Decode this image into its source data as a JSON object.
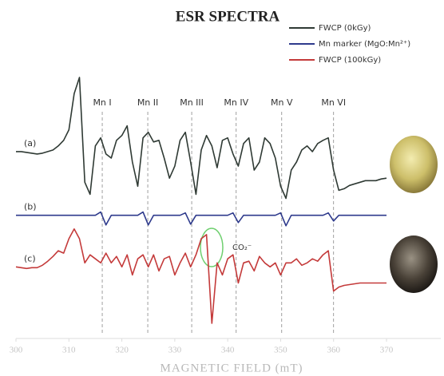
{
  "chart_data": {
    "type": "line",
    "title": "ESR SPECTRA",
    "x_label": "MAGNETIC FIELD (mT)",
    "xlim": [
      300,
      370
    ],
    "xticks": [
      300,
      310,
      320,
      330,
      340,
      350,
      360,
      370
    ],
    "x": [
      300,
      301,
      302,
      303,
      304,
      305,
      306,
      307,
      308,
      309,
      310,
      311,
      312,
      313,
      314,
      315,
      316,
      317,
      318,
      319,
      320,
      321,
      322,
      323,
      324,
      325,
      326,
      327,
      328,
      329,
      330,
      331,
      332,
      333,
      334,
      335,
      336,
      337,
      338,
      339,
      340,
      341,
      342,
      343,
      344,
      345,
      346,
      347,
      348,
      349,
      350,
      351,
      352,
      353,
      354,
      355,
      356,
      357,
      358,
      359,
      360,
      361,
      362,
      363,
      364,
      365,
      366,
      367,
      368,
      369,
      370
    ],
    "series": [
      {
        "name": "FWCP (0kGy)",
        "label": "(a)",
        "color": "#2f3a34",
        "values": [
          258,
          258,
          257,
          256,
          255,
          256,
          258,
          260,
          265,
          272,
          285,
          330,
          350,
          220,
          205,
          265,
          275,
          255,
          250,
          272,
          278,
          290,
          245,
          215,
          275,
          282,
          270,
          272,
          250,
          225,
          240,
          272,
          282,
          245,
          205,
          260,
          278,
          265,
          238,
          272,
          275,
          255,
          240,
          268,
          275,
          235,
          245,
          275,
          268,
          250,
          215,
          200,
          235,
          245,
          260,
          265,
          258,
          268,
          272,
          275,
          235,
          210,
          212,
          216,
          218,
          220,
          222,
          222,
          222,
          224,
          225
        ]
      },
      {
        "name": "Mn marker (MgO:Mn²⁺)",
        "label": "(b)",
        "color": "#2e3a8c",
        "values": [
          179,
          179,
          179,
          179,
          179,
          179,
          179,
          179,
          179,
          179,
          179,
          179,
          179,
          179,
          179,
          179,
          183,
          167,
          179,
          179,
          179,
          179,
          179,
          179,
          183,
          167,
          179,
          179,
          179,
          179,
          179,
          179,
          182,
          168,
          179,
          179,
          179,
          179,
          179,
          179,
          179,
          182,
          170,
          179,
          179,
          179,
          179,
          179,
          179,
          179,
          182,
          166,
          179,
          179,
          179,
          179,
          179,
          179,
          179,
          182,
          172,
          179,
          179,
          179,
          179,
          179,
          179,
          179,
          179,
          179,
          179
        ]
      },
      {
        "name": "FWCP (100kGy)",
        "label": "(c)",
        "color": "#c43a3a",
        "values": [
          115,
          114,
          113,
          114,
          114,
          117,
          122,
          128,
          135,
          132,
          150,
          162,
          150,
          120,
          130,
          125,
          120,
          132,
          120,
          128,
          115,
          130,
          105,
          125,
          130,
          115,
          130,
          110,
          125,
          128,
          105,
          120,
          132,
          115,
          130,
          150,
          155,
          45,
          120,
          105,
          125,
          130,
          95,
          120,
          122,
          110,
          128,
          120,
          115,
          120,
          105,
          120,
          120,
          125,
          117,
          120,
          125,
          122,
          130,
          135,
          85,
          90,
          92,
          93,
          94,
          95,
          95,
          95,
          95,
          95,
          95
        ]
      }
    ],
    "markers": [
      {
        "label": "Mn I",
        "x": 316.3
      },
      {
        "label": "Mn II",
        "x": 324.9
      },
      {
        "label": "Mn III",
        "x": 333.2
      },
      {
        "label": "Mn IV",
        "x": 341.6
      },
      {
        "label": "Mn V",
        "x": 350.2
      },
      {
        "label": "Mn VI",
        "x": 360.0
      }
    ],
    "annotation": "CO₂⁻"
  }
}
